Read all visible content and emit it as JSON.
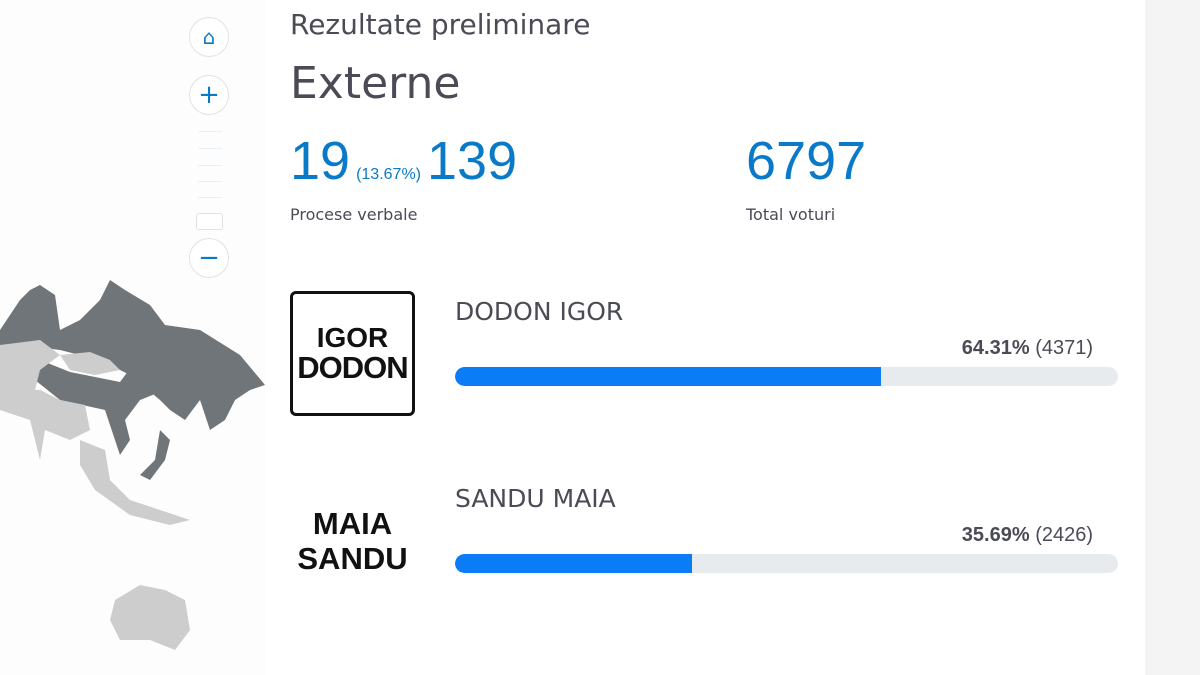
{
  "map": {
    "controls": {
      "home": "home-icon",
      "zoom_in": "plus-icon",
      "zoom_out": "minus-icon"
    },
    "highlight_color": "#6f7578",
    "other_color": "#cdcdcd"
  },
  "header": {
    "subtitle": "Rezultate preliminare",
    "title": "Externe"
  },
  "stats": {
    "processed": "19",
    "processed_pct": "(13.67%)",
    "total_processed": "139",
    "processed_label": "Procese verbale",
    "total_votes": "6797",
    "total_votes_label": "Total voturi"
  },
  "candidates": [
    {
      "logo_line1": "IGOR",
      "logo_line2": "DODON",
      "name": "DODON IGOR",
      "percent": "64.31%",
      "votes": "(4371)",
      "share": 64.31
    },
    {
      "logo_line1": "MAIA",
      "logo_line2": "SANDU",
      "name": "SANDU MAIA",
      "percent": "35.69%",
      "votes": "(2426)",
      "share": 35.69
    }
  ],
  "colors": {
    "accent": "#0a7ac8",
    "bar": "#0a7cf5",
    "bar_track": "#e8ebee"
  }
}
